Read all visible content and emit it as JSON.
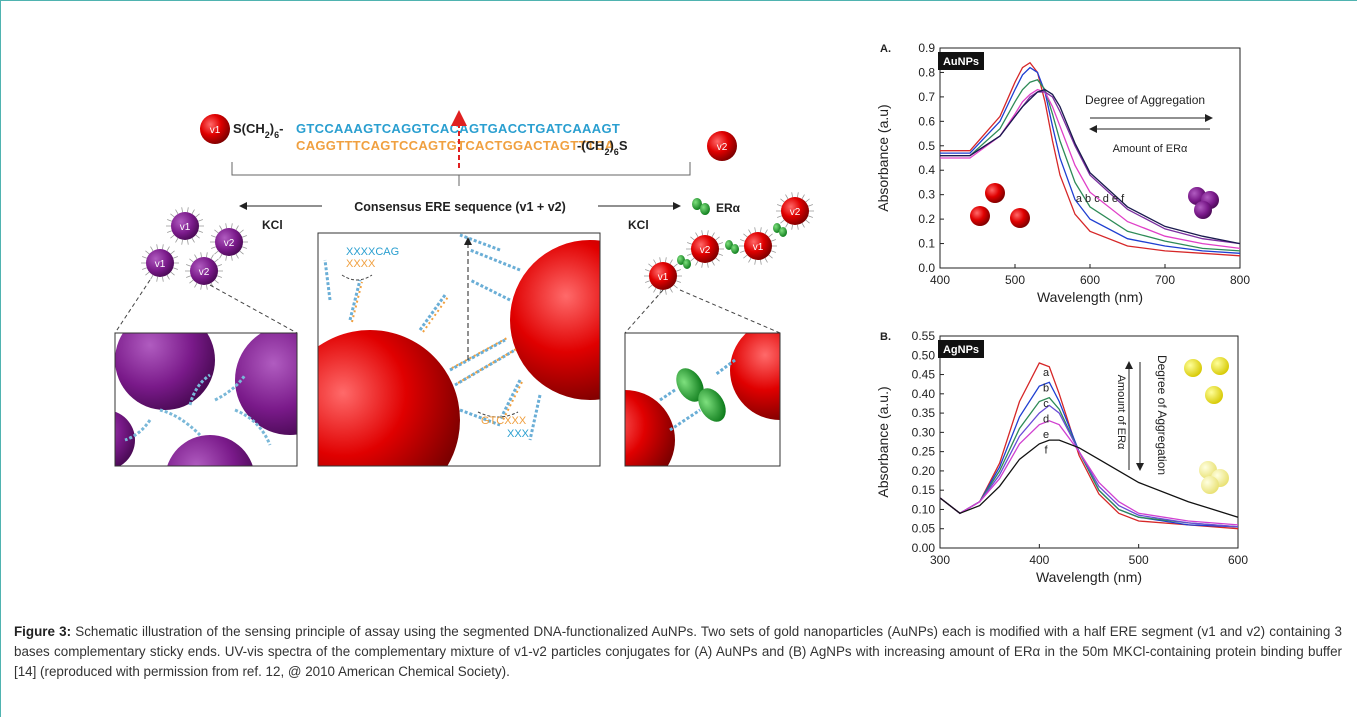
{
  "schematic": {
    "top_left_particle": "v1",
    "linker_left": [
      "S(CH",
      "2",
      ")",
      "6",
      "-"
    ],
    "strand_top": "GTCCAAAGTCAGGTCACAGTGACCTGATCAAAGT",
    "strand_bottom": "CAGGTTTCAGTCCAGTGTCACTGGACTAGTTTCA",
    "linker_right": [
      "-(CH",
      "2",
      ")",
      "6",
      "S"
    ],
    "top_right_particle": "v2",
    "consensus_label": "Consensus ERE sequence (v1 + v2)",
    "kcl_left": "KCl",
    "kcl_right": "KCl",
    "er_label": "ERα",
    "left_particles": [
      "v1",
      "v2",
      "v1",
      "v2"
    ],
    "right_particles": [
      "v1",
      "v2",
      "v1",
      "v2"
    ],
    "end_top_blue": "XXXXCAG",
    "end_top_orange": "XXXX",
    "end_bottom_orange": "GTCXXX",
    "end_bottom_blue": "XXX"
  },
  "chart_data": [
    {
      "type": "line",
      "panel_label": "A.",
      "tag": "AuNPs",
      "annotations": [
        "Degree of Aggregation",
        "Amount of ERα",
        "a b c d e f"
      ],
      "x_label": "Wavelength (nm)",
      "y_label": "Absorbance (a.u)",
      "x": [
        400,
        440,
        480,
        500,
        510,
        520,
        530,
        540,
        550,
        560,
        580,
        600,
        650,
        700,
        750,
        800
      ],
      "series": [
        {
          "name": "a",
          "color": "#d62728",
          "values": [
            0.48,
            0.48,
            0.62,
            0.76,
            0.82,
            0.84,
            0.8,
            0.68,
            0.52,
            0.38,
            0.22,
            0.15,
            0.09,
            0.07,
            0.06,
            0.05
          ]
        },
        {
          "name": "b",
          "color": "#1f3fd1",
          "values": [
            0.47,
            0.47,
            0.6,
            0.73,
            0.79,
            0.82,
            0.8,
            0.72,
            0.58,
            0.45,
            0.28,
            0.2,
            0.12,
            0.09,
            0.07,
            0.06
          ]
        },
        {
          "name": "c",
          "color": "#2e8b57",
          "values": [
            0.46,
            0.46,
            0.57,
            0.68,
            0.73,
            0.76,
            0.77,
            0.73,
            0.63,
            0.52,
            0.35,
            0.25,
            0.15,
            0.11,
            0.08,
            0.07
          ]
        },
        {
          "name": "d",
          "color": "#e040c8",
          "values": [
            0.45,
            0.45,
            0.54,
            0.63,
            0.68,
            0.71,
            0.73,
            0.72,
            0.66,
            0.58,
            0.42,
            0.31,
            0.19,
            0.13,
            0.1,
            0.08
          ]
        },
        {
          "name": "e",
          "color": "#7b2fa0",
          "values": [
            0.46,
            0.46,
            0.54,
            0.62,
            0.66,
            0.7,
            0.72,
            0.72,
            0.7,
            0.64,
            0.5,
            0.38,
            0.24,
            0.16,
            0.12,
            0.1
          ]
        },
        {
          "name": "f",
          "color": "#1a1a4e",
          "values": [
            0.46,
            0.46,
            0.54,
            0.62,
            0.66,
            0.69,
            0.72,
            0.73,
            0.71,
            0.66,
            0.51,
            0.39,
            0.25,
            0.17,
            0.13,
            0.1
          ]
        }
      ],
      "xlim": [
        400,
        800
      ],
      "xticks": [
        400,
        500,
        600,
        700,
        800
      ],
      "ylim": [
        0,
        0.9
      ],
      "yticks": [
        {
          "value": 0,
          "label": "0.0"
        },
        0.1,
        0.2,
        0.3,
        0.4,
        0.5,
        0.6,
        0.7,
        0.8,
        0.9
      ]
    },
    {
      "type": "line",
      "panel_label": "B.",
      "tag": "AgNPs",
      "annotations": [
        "Amount of ERα",
        "Degree of Aggregation"
      ],
      "curve_labels": [
        "a",
        "b",
        "c",
        "d",
        "e",
        "f"
      ],
      "x_label": "Wavelength (nm)",
      "y_label": "Absorbance (a.u.)",
      "x": [
        300,
        320,
        340,
        360,
        380,
        400,
        410,
        420,
        440,
        460,
        480,
        500,
        550,
        600
      ],
      "series": [
        {
          "name": "a",
          "color": "#d62728",
          "values": [
            0.13,
            0.09,
            0.12,
            0.22,
            0.38,
            0.48,
            0.47,
            0.4,
            0.24,
            0.14,
            0.09,
            0.07,
            0.06,
            0.05
          ]
        },
        {
          "name": "b",
          "color": "#1f3fd1",
          "values": [
            0.13,
            0.09,
            0.12,
            0.21,
            0.34,
            0.42,
            0.43,
            0.38,
            0.25,
            0.15,
            0.1,
            0.08,
            0.06,
            0.055
          ]
        },
        {
          "name": "c",
          "color": "#2e8b57",
          "values": [
            0.13,
            0.09,
            0.12,
            0.2,
            0.31,
            0.38,
            0.39,
            0.36,
            0.25,
            0.15,
            0.1,
            0.08,
            0.065,
            0.055
          ]
        },
        {
          "name": "d",
          "color": "#6a4bd6",
          "values": [
            0.13,
            0.09,
            0.12,
            0.19,
            0.29,
            0.35,
            0.37,
            0.35,
            0.25,
            0.16,
            0.11,
            0.085,
            0.065,
            0.055
          ]
        },
        {
          "name": "e",
          "color": "#d040d0",
          "values": [
            0.13,
            0.09,
            0.12,
            0.18,
            0.27,
            0.32,
            0.33,
            0.32,
            0.25,
            0.17,
            0.12,
            0.09,
            0.07,
            0.06
          ]
        },
        {
          "name": "f",
          "color": "#111111",
          "values": [
            0.13,
            0.09,
            0.11,
            0.16,
            0.23,
            0.27,
            0.28,
            0.28,
            0.26,
            0.23,
            0.2,
            0.17,
            0.12,
            0.08
          ]
        }
      ],
      "xlim": [
        300,
        600
      ],
      "xticks": [
        300,
        400,
        500,
        600
      ],
      "ylim": [
        0,
        0.55
      ],
      "yticks": [
        {
          "value": 0,
          "label": "0.00"
        },
        {
          "value": 0.05,
          "label": "0.05"
        },
        {
          "value": 0.1,
          "label": "0.10"
        },
        {
          "value": 0.15,
          "label": "0.15"
        },
        {
          "value": 0.2,
          "label": "0.20"
        },
        {
          "value": 0.25,
          "label": "0.25"
        },
        {
          "value": 0.3,
          "label": "0.30"
        },
        {
          "value": 0.35,
          "label": "0.35"
        },
        {
          "value": 0.4,
          "label": "0.40"
        },
        {
          "value": 0.45,
          "label": "0.45"
        },
        {
          "value": 0.5,
          "label": "0.50"
        },
        {
          "value": 0.55,
          "label": "0.55"
        }
      ]
    }
  ],
  "caption": {
    "label": "Figure 3:",
    "text": " Schematic illustration of the sensing principle of assay using the segmented DNA-functionalized AuNPs. Two sets of gold nanoparticles (AuNPs) each is modified with a half ERE segment (v1 and v2) containing 3 bases complementary sticky ends. UV-vis spectra of the complementary mixture of v1-v2 particles conjugates for (A) AuNPs and (B) AgNPs with increasing amount of ERα in the 50m MKCl-containing protein binding buffer [14] (reproduced with permission from ref. 12, @  2010 American Chemical Society)."
  }
}
